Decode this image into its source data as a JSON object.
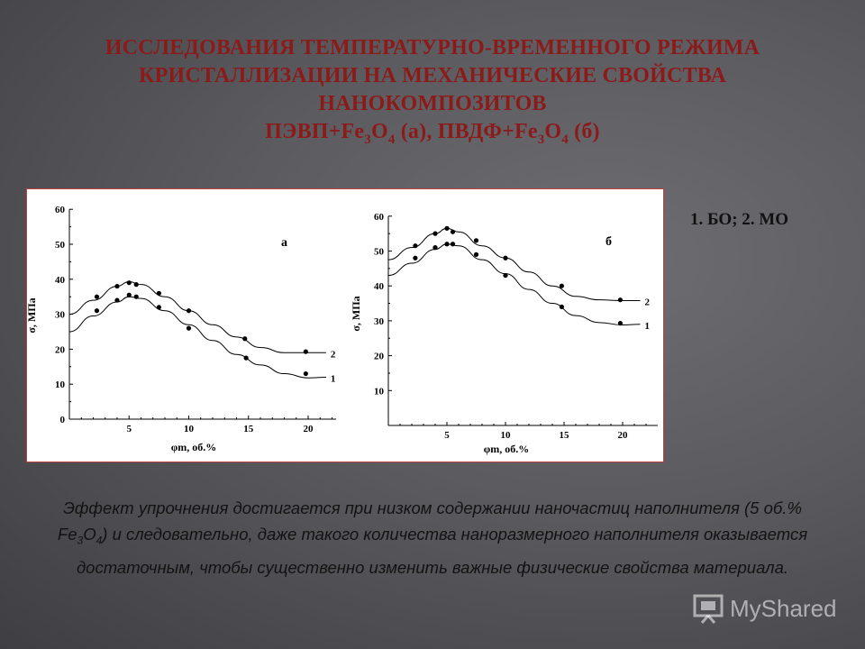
{
  "title": {
    "line1": "ИССЛЕДОВАНИЯ ТЕМПЕРАТУРНО-ВРЕМЕННОГО РЕЖИМА",
    "line2": "КРИСТАЛЛИЗАЦИИ НА МЕХАНИЧЕСКИЕ СВОЙСТВА",
    "line3": "НАНОКОМПОЗИТОВ",
    "line4_a": "ПЭВП+Fe",
    "line4_b": "O",
    "line4_c": " (а), ПВДФ+Fe",
    "line4_d": "O",
    "line4_e": " (б)",
    "sub3": "3",
    "sub4": "4"
  },
  "legend_note": "1. БО; 2. МО",
  "caption": {
    "part1": "Эффект упрочнения достигается при низком содержании наночастиц наполнителя (5 об.% Fe",
    "sub3": "3",
    "part2": "O",
    "sub4": "4",
    "part3": ") и следовательно, даже такого количества наноразмерного наполнителя оказывается достаточным, чтобы существенно изменить важные физические свойства материала."
  },
  "watermark": {
    "text": "MyShared"
  },
  "colors": {
    "title": "#8b1a1a",
    "panel_border": "#c24040",
    "ink": "#000000"
  },
  "chart_data": [
    {
      "type": "line",
      "panel_label": "а",
      "ylabel": "σ, МПа",
      "xlabel": "φm, об.%",
      "x_ticks": [
        5,
        10,
        15,
        20
      ],
      "y_ticks": [
        0,
        10,
        20,
        30,
        40,
        50,
        60
      ],
      "xlim": [
        0,
        23
      ],
      "ylim": [
        0,
        60
      ],
      "series": [
        {
          "name": "2",
          "curve": [
            [
              0,
              30
            ],
            [
              2,
              34
            ],
            [
              4,
              38
            ],
            [
              5,
              39.3
            ],
            [
              6,
              38.5
            ],
            [
              8,
              35
            ],
            [
              10,
              31
            ],
            [
              12,
              27
            ],
            [
              14,
              23.5
            ],
            [
              16,
              20.5
            ],
            [
              18,
              19
            ],
            [
              20,
              19
            ],
            [
              21.5,
              19
            ]
          ],
          "points": [
            [
              2.3,
              35
            ],
            [
              4,
              38
            ],
            [
              5,
              39
            ],
            [
              5.6,
              38.5
            ],
            [
              7.5,
              36
            ],
            [
              10,
              31
            ],
            [
              14.7,
              23
            ],
            [
              19.8,
              19.3
            ]
          ]
        },
        {
          "name": "1",
          "curve": [
            [
              0,
              25
            ],
            [
              2,
              29.5
            ],
            [
              4,
              33.5
            ],
            [
              5,
              35
            ],
            [
              6,
              34.5
            ],
            [
              8,
              31
            ],
            [
              10,
              27
            ],
            [
              12,
              22.5
            ],
            [
              14,
              18.5
            ],
            [
              16,
              15.5
            ],
            [
              18,
              13
            ],
            [
              20,
              11.8
            ],
            [
              21.5,
              12
            ]
          ],
          "points": [
            [
              2.3,
              31
            ],
            [
              4,
              34
            ],
            [
              5,
              35.5
            ],
            [
              5.6,
              35
            ],
            [
              7.5,
              32
            ],
            [
              10,
              26
            ],
            [
              14.8,
              17.5
            ],
            [
              19.8,
              13
            ]
          ]
        }
      ]
    },
    {
      "type": "line",
      "panel_label": "б",
      "ylabel": "σ, МПа",
      "xlabel": "φm, об.%",
      "x_ticks": [
        5,
        10,
        15,
        20
      ],
      "y_ticks": [
        10,
        20,
        30,
        40,
        50,
        60
      ],
      "xlim": [
        0,
        22
      ],
      "ylim": [
        0,
        60
      ],
      "series": [
        {
          "name": "2",
          "curve": [
            [
              0,
              47.5
            ],
            [
              2,
              51
            ],
            [
              4,
              55
            ],
            [
              5,
              56.5
            ],
            [
              6,
              55.5
            ],
            [
              8,
              51.5
            ],
            [
              10,
              48
            ],
            [
              12,
              44
            ],
            [
              14,
              40
            ],
            [
              16,
              37
            ],
            [
              18,
              36
            ],
            [
              20,
              35.8
            ],
            [
              21.5,
              35.8
            ]
          ],
          "points": [
            [
              2.3,
              51.5
            ],
            [
              4,
              55
            ],
            [
              5,
              56.5
            ],
            [
              5.5,
              55.5
            ],
            [
              7.5,
              53
            ],
            [
              10,
              48
            ],
            [
              14.8,
              40
            ],
            [
              19.8,
              36
            ]
          ]
        },
        {
          "name": "1",
          "curve": [
            [
              0,
              43
            ],
            [
              2,
              46.5
            ],
            [
              4,
              50.5
            ],
            [
              5,
              52
            ],
            [
              6,
              51.5
            ],
            [
              8,
              47.5
            ],
            [
              10,
              43.5
            ],
            [
              12,
              39
            ],
            [
              14,
              35
            ],
            [
              16,
              31.5
            ],
            [
              18,
              29.5
            ],
            [
              20,
              28.8
            ],
            [
              21.5,
              29
            ]
          ],
          "points": [
            [
              2.3,
              48
            ],
            [
              4,
              51
            ],
            [
              5,
              52
            ],
            [
              5.5,
              52
            ],
            [
              7.5,
              49
            ],
            [
              10,
              43
            ],
            [
              14.8,
              34
            ],
            [
              19.8,
              29.3
            ]
          ]
        }
      ]
    }
  ]
}
